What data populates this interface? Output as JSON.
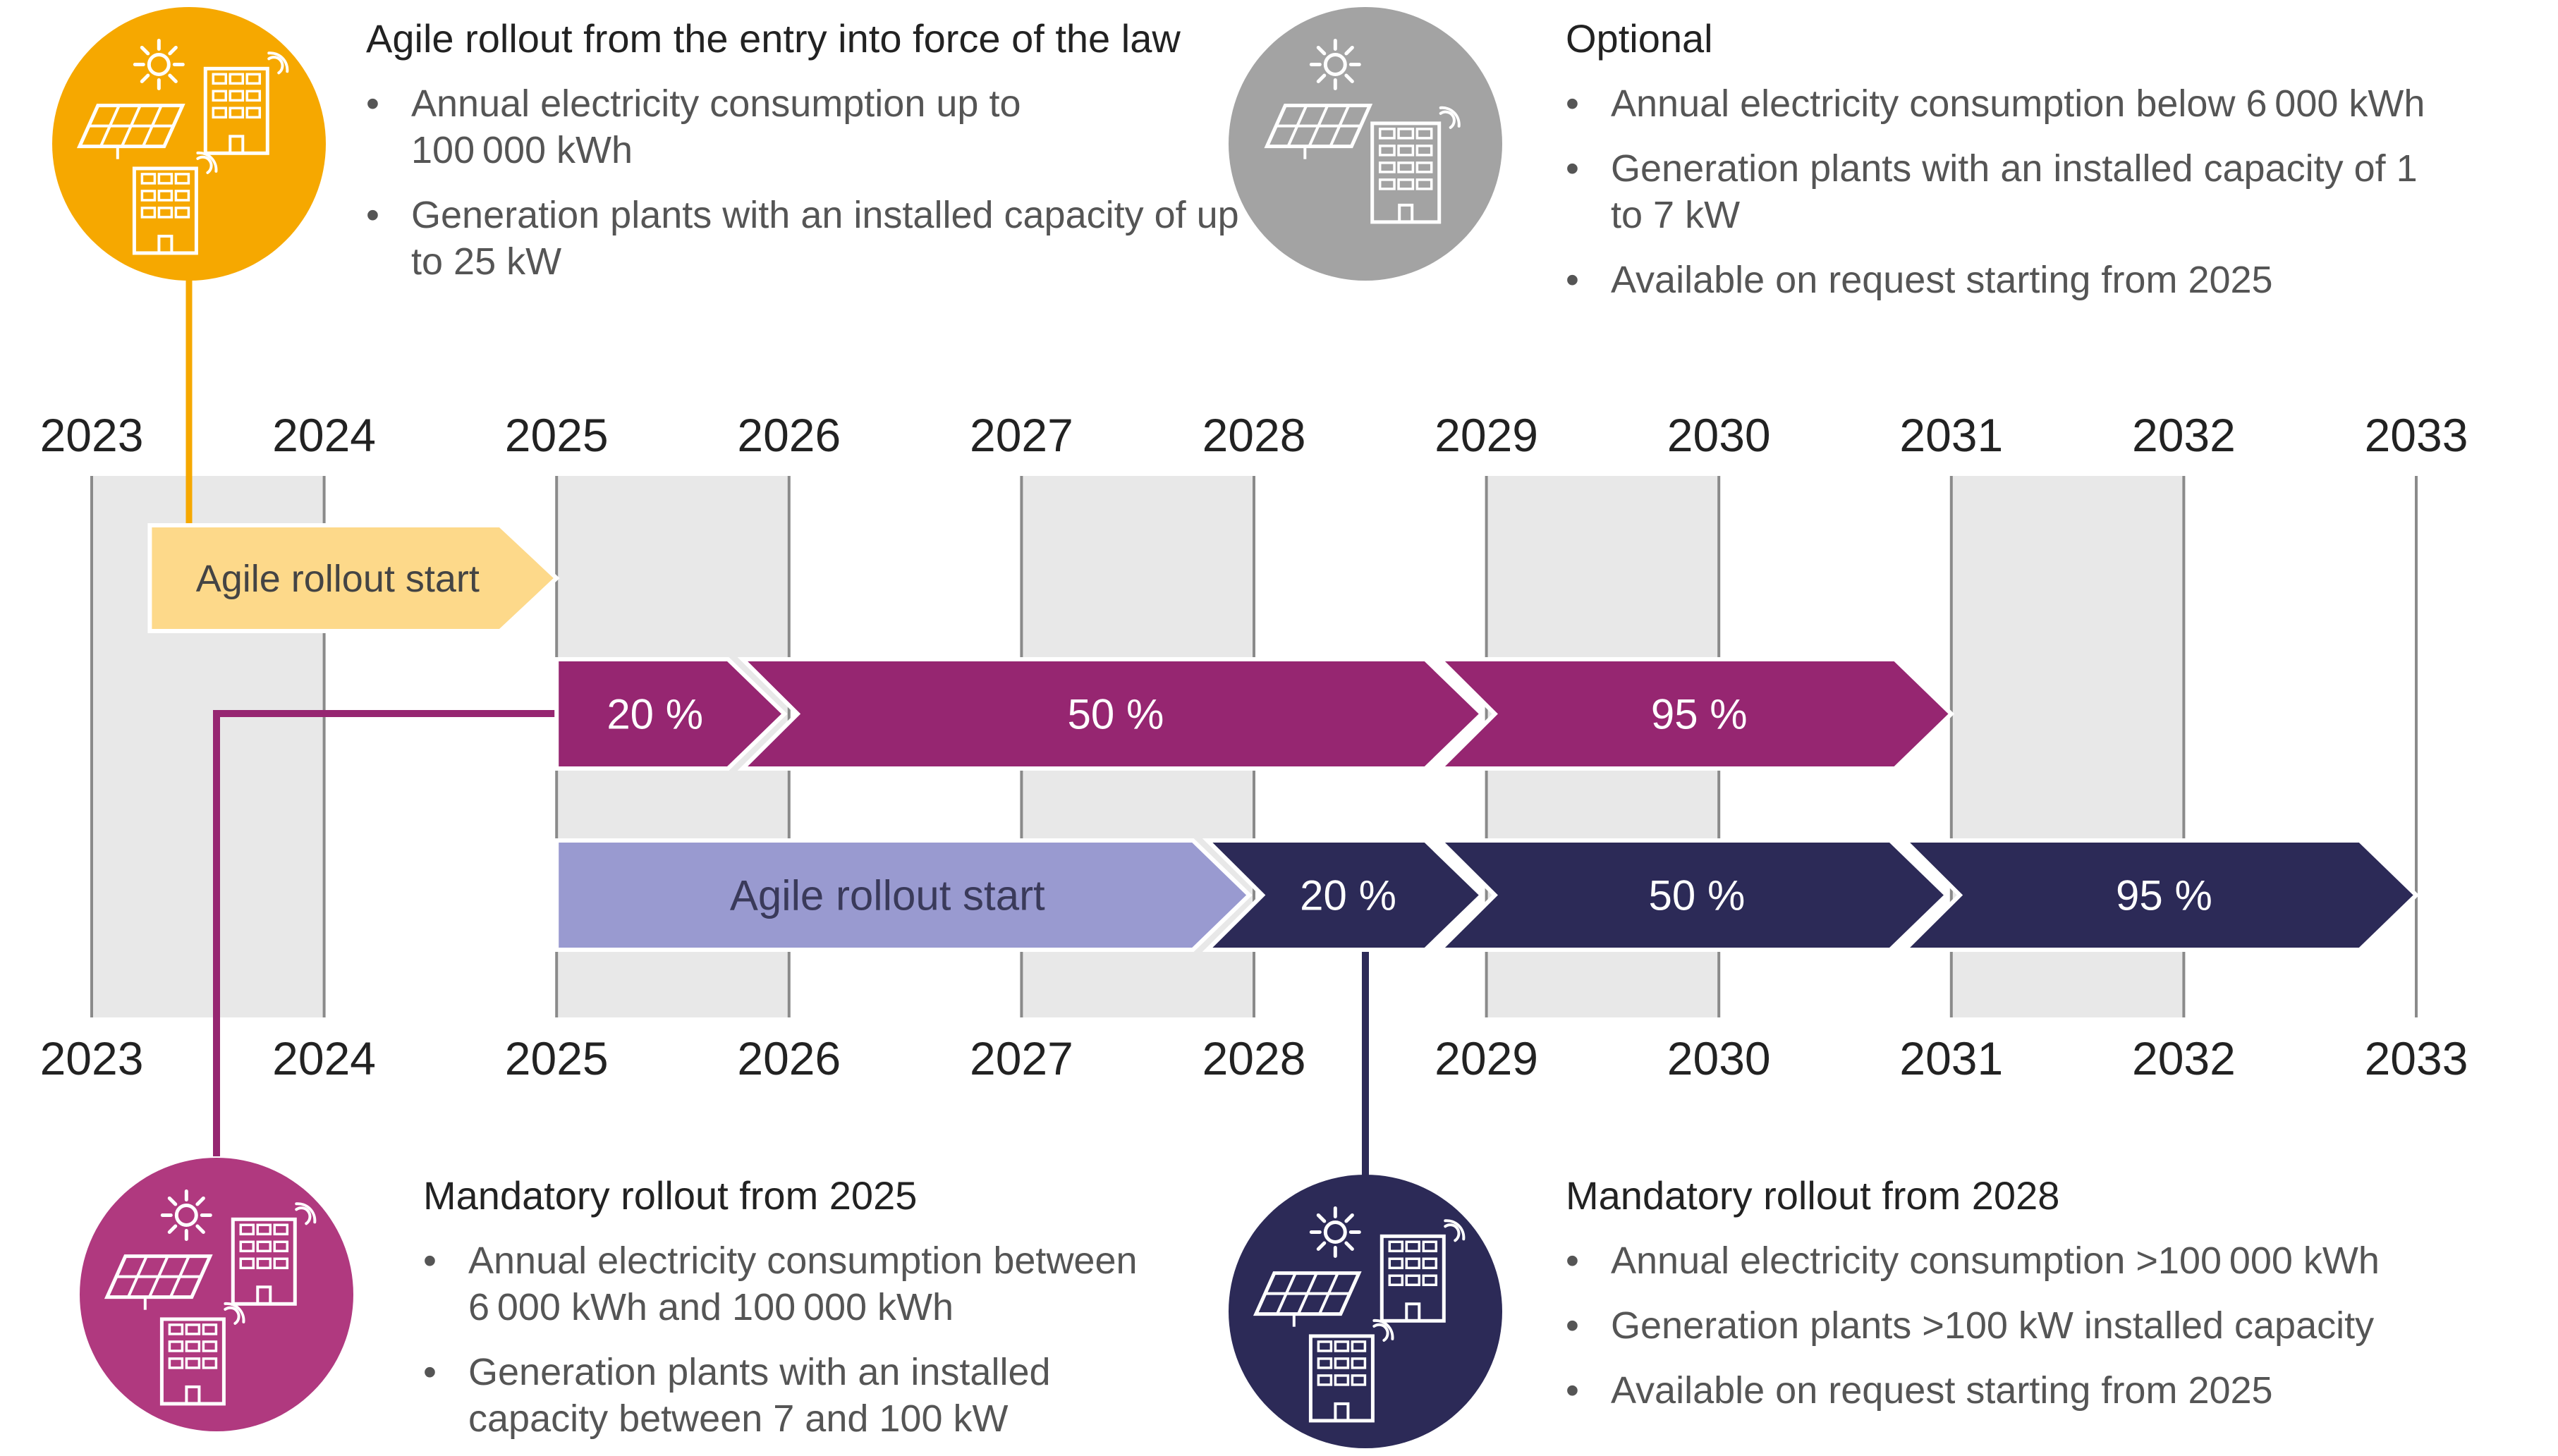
{
  "years": [
    "2023",
    "2024",
    "2025",
    "2026",
    "2027",
    "2028",
    "2029",
    "2030",
    "2031",
    "2032",
    "2033"
  ],
  "colors": {
    "orange": "#f6a800",
    "orange_light": "#fdd98a",
    "purple": "#962671",
    "purple_circle": "#b0397f",
    "navy": "#2c2a57",
    "lavender": "#999ad0",
    "gray_circle": "#a3a3a3",
    "band": "#e8e8e8",
    "gridline": "#8a8a8a"
  },
  "blocks": {
    "agile": {
      "title": "Agile rollout from the entry into force of the law",
      "items": [
        "Annual electricity consumption up to 100 000 kWh",
        "Generation plants with an installed capacity of up to 25 kW"
      ]
    },
    "optional": {
      "title": "Optional",
      "items": [
        "Annual electricity consumption below 6 000 kWh",
        "Generation plants with an installed capacity of 1 to 7 kW",
        "Available on request starting from 2025"
      ]
    },
    "mandatory_2025": {
      "title": "Mandatory rollout from 2025",
      "items": [
        "Annual electricity consumption between 6 000 kWh and 100 000 kWh",
        "Generation plants with an installed capacity between 7 and 100 kW"
      ]
    },
    "mandatory_2028": {
      "title": "Mandatory rollout from 2028",
      "items": [
        "Annual electricity consumption >100 000 kWh",
        "Generation plants >100 kW installed capacity",
        "Available on request starting from 2025"
      ]
    }
  },
  "tracks": {
    "agile": [
      {
        "label": "Agile rollout start",
        "start": 2023.25,
        "end": 2025.0,
        "color": "#fdd98a",
        "text_color": "#444444"
      }
    ],
    "mandatory_2025": [
      {
        "label": "20 %",
        "start": 2025.0,
        "end": 2025.98,
        "color": "#962671",
        "text_color": "#ffffff"
      },
      {
        "label": "50 %",
        "start": 2025.8,
        "end": 2028.98,
        "color": "#962671",
        "text_color": "#ffffff"
      },
      {
        "label": "95 %",
        "start": 2028.8,
        "end": 2031.0,
        "color": "#962671",
        "text_color": "#ffffff"
      }
    ],
    "mandatory_2028": [
      {
        "label": "Agile rollout start",
        "start": 2025.0,
        "end": 2027.98,
        "color": "#999ad0",
        "text_color": "#3a3a5a"
      },
      {
        "label": "20 %",
        "start": 2027.8,
        "end": 2028.98,
        "color": "#2c2a57",
        "text_color": "#ffffff"
      },
      {
        "label": "50 %",
        "start": 2028.8,
        "end": 2030.98,
        "color": "#2c2a57",
        "text_color": "#ffffff"
      },
      {
        "label": "95 %",
        "start": 2030.8,
        "end": 2033.0,
        "color": "#2c2a57",
        "text_color": "#ffffff"
      }
    ]
  },
  "icons": {
    "agile": "solar-panel-and-buildings-icon",
    "optional": "solar-panel-and-building-icon",
    "mandatory_2025": "solar-panel-and-buildings-icon",
    "mandatory_2028": "solar-panel-and-buildings-icon"
  }
}
